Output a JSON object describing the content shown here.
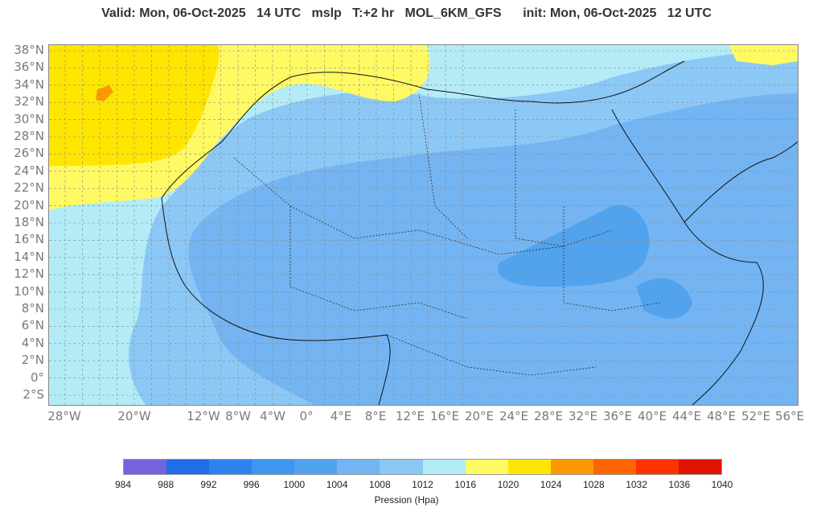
{
  "header": {
    "title": "Valid: Mon, 06-Oct-2025   14 UTC   mslp   T:+2 hr   MOL_6KM_GFS      init: Mon, 06-Oct-2025   12 UTC"
  },
  "map": {
    "lat_labels": [
      "38°N",
      "36°N",
      "34°N",
      "32°N",
      "30°N",
      "28°N",
      "26°N",
      "24°N",
      "22°N",
      "20°N",
      "18°N",
      "16°N",
      "14°N",
      "12°N",
      "10°N",
      "8°N",
      "6°N",
      "4°N",
      "2°N",
      "0°",
      "2°S"
    ],
    "lon_labels": [
      "28°W",
      "20°W",
      "12°W",
      "8°W",
      "4°W",
      "0°",
      "4°E",
      "8°E",
      "12°E",
      "16°E",
      "20°E",
      "24°E",
      "28°E",
      "32°E",
      "36°E",
      "40°E",
      "44°E",
      "48°E",
      "52°E",
      "56°E"
    ],
    "field_colors": {
      "p1020": "#fffa64",
      "p1024": "#ffe600",
      "p1028": "#fb9a00",
      "p1016": "#b3ecf7",
      "p1012": "#8cc8f6",
      "p1008": "#74b4f2",
      "p1004": "#52a3ee"
    }
  },
  "colorbar": {
    "title": "Pression (Hpa)",
    "labels": [
      "984",
      "988",
      "992",
      "996",
      "1000",
      "1004",
      "1008",
      "1012",
      "1016",
      "1020",
      "1024",
      "1028",
      "1032",
      "1036",
      "1040"
    ],
    "colors": [
      "#7562dd",
      "#1f6ee8",
      "#2e82ee",
      "#3d96f0",
      "#52a3ee",
      "#74b4f2",
      "#8cc8f6",
      "#b3ecf7",
      "#fffa64",
      "#ffe600",
      "#fb9a00",
      "#ff6400",
      "#ff3200",
      "#e01400"
    ]
  }
}
